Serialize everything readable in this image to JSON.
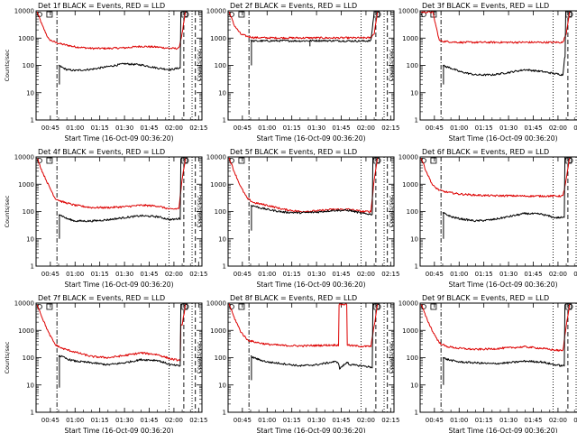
{
  "figure": {
    "background": "#ffffff"
  },
  "colors": {
    "events": "#000000",
    "lld": "#dd0000",
    "axes": "#000000"
  },
  "x_ticks": [
    "00:45",
    "01:00",
    "01:15",
    "01:30",
    "01:45",
    "02:00",
    "02:15"
  ],
  "y_ticks": [
    "1",
    "10",
    "100",
    "1000",
    "10000"
  ],
  "chart_data": [
    {
      "type": "line",
      "title": "Det 1f BLACK = Events, RED = LLD",
      "xlabel": "Start Time (16-Oct-09 00:36:20)",
      "ylabel": "Counts/sec",
      "xlim_minutes": [
        36.33,
        137
      ],
      "ylim": [
        1,
        10000
      ],
      "yscale": "log",
      "markers": {
        "dashdot": [
          49
        ],
        "dotted": [
          117,
          131
        ],
        "dashed": [
          126,
          133
        ]
      },
      "series": [
        {
          "name": "Events",
          "color": "black",
          "x": [
            50,
            52,
            55,
            60,
            70,
            80,
            90,
            100,
            110,
            118,
            123,
            125
          ],
          "y": [
            100,
            85,
            70,
            65,
            72,
            90,
            115,
            105,
            80,
            70,
            80,
            9000
          ],
          "spikes": [
            [
              50.5,
              20
            ]
          ]
        },
        {
          "name": "LLD",
          "color": "red",
          "x": [
            37,
            40,
            44,
            48,
            52,
            60,
            70,
            80,
            90,
            100,
            110,
            118,
            123,
            125,
            127
          ],
          "y": [
            9000,
            3000,
            900,
            700,
            600,
            480,
            420,
            420,
            440,
            500,
            470,
            420,
            420,
            1500,
            9000
          ]
        }
      ]
    },
    {
      "type": "line",
      "title": "Det 2f BLACK = Events, RED = LLD",
      "xlabel": "Start Time (16-Oct-09 00:36:20)",
      "ylabel": "Counts/sec",
      "xlim_minutes": [
        36.33,
        137
      ],
      "ylim": [
        1,
        10000
      ],
      "yscale": "log",
      "markers": {
        "dashdot": [
          49
        ],
        "dotted": [
          117,
          131
        ],
        "dashed": [
          126,
          133
        ]
      },
      "series": [
        {
          "name": "Events",
          "color": "black",
          "x": [
            50,
            52,
            60,
            70,
            80,
            90,
            100,
            110,
            118,
            123,
            125
          ],
          "y": [
            800,
            780,
            790,
            800,
            790,
            810,
            800,
            790,
            780,
            800,
            9000
          ],
          "spikes": [
            [
              50.5,
              100
            ],
            [
              86,
              500
            ]
          ]
        },
        {
          "name": "LLD",
          "color": "red",
          "x": [
            37,
            40,
            44,
            48,
            52,
            60,
            70,
            80,
            90,
            100,
            110,
            118,
            123,
            125,
            127
          ],
          "y": [
            9000,
            3000,
            1400,
            1150,
            1050,
            1020,
            1020,
            1020,
            1020,
            1020,
            1020,
            1020,
            1030,
            1500,
            9000
          ]
        }
      ]
    },
    {
      "type": "line",
      "title": "Det 3f BLACK = Events, RED = LLD",
      "xlabel": "Start Time (16-Oct-09 00:36:20)",
      "ylabel": "Counts/sec",
      "xlim_minutes": [
        36.33,
        137
      ],
      "ylim": [
        1,
        10000
      ],
      "yscale": "log",
      "markers": {
        "dashdot": [
          49
        ],
        "dotted": [
          117,
          131
        ],
        "dashed": [
          126,
          133
        ]
      },
      "series": [
        {
          "name": "Events",
          "color": "black",
          "x": [
            50,
            52,
            55,
            60,
            70,
            80,
            90,
            100,
            110,
            118,
            123,
            124,
            125
          ],
          "y": [
            100,
            90,
            80,
            60,
            45,
            45,
            55,
            70,
            60,
            50,
            45,
            200,
            9000
          ],
          "spikes": [
            [
              50.5,
              20
            ]
          ]
        },
        {
          "name": "LLD",
          "color": "red",
          "x": [
            37,
            40,
            44,
            48,
            52,
            60,
            70,
            80,
            90,
            100,
            110,
            118,
            123,
            125,
            127
          ],
          "y": [
            9000,
            9000,
            9000,
            800,
            750,
            700,
            700,
            700,
            700,
            700,
            700,
            700,
            700,
            1500,
            9000
          ]
        }
      ]
    },
    {
      "type": "line",
      "title": "Det 4f BLACK = Events, RED = LLD",
      "xlabel": "Start Time (16-Oct-09 00:36:20)",
      "ylabel": "Counts/sec",
      "xlim_minutes": [
        36.33,
        137
      ],
      "ylim": [
        1,
        10000
      ],
      "yscale": "log",
      "markers": {
        "dashdot": [
          49
        ],
        "dotted": [
          117,
          131
        ],
        "dashed": [
          126,
          133
        ]
      },
      "series": [
        {
          "name": "Events",
          "color": "black",
          "x": [
            50,
            52,
            55,
            60,
            70,
            80,
            90,
            100,
            110,
            118,
            123,
            125
          ],
          "y": [
            80,
            70,
            55,
            45,
            45,
            50,
            60,
            70,
            65,
            50,
            55,
            9000
          ],
          "spikes": [
            [
              50.5,
              10
            ]
          ]
        },
        {
          "name": "LLD",
          "color": "red",
          "x": [
            37,
            40,
            44,
            48,
            52,
            60,
            70,
            80,
            90,
            100,
            110,
            118,
            123,
            125,
            127
          ],
          "y": [
            9000,
            3000,
            900,
            300,
            230,
            170,
            140,
            140,
            150,
            170,
            160,
            120,
            130,
            1500,
            9000
          ]
        }
      ]
    },
    {
      "type": "line",
      "title": "Det 5f BLACK = Events, RED = LLD",
      "xlabel": "Start Time (16-Oct-09 00:36:20)",
      "ylabel": "Counts/sec",
      "xlim_minutes": [
        36.33,
        137
      ],
      "ylim": [
        1,
        10000
      ],
      "yscale": "log",
      "markers": {
        "dashdot": [
          49
        ],
        "dotted": [
          117,
          131
        ],
        "dashed": [
          126,
          133
        ]
      },
      "series": [
        {
          "name": "Events",
          "color": "black",
          "x": [
            50,
            52,
            55,
            60,
            70,
            80,
            90,
            100,
            110,
            118,
            123,
            125
          ],
          "y": [
            170,
            160,
            140,
            120,
            95,
            90,
            95,
            110,
            110,
            85,
            80,
            9000
          ],
          "spikes": [
            [
              50.5,
              20
            ]
          ]
        },
        {
          "name": "LLD",
          "color": "red",
          "x": [
            37,
            40,
            44,
            48,
            52,
            60,
            70,
            80,
            90,
            100,
            110,
            118,
            123,
            125,
            127
          ],
          "y": [
            9000,
            3000,
            800,
            300,
            210,
            170,
            120,
            100,
            105,
            120,
            120,
            100,
            100,
            1500,
            9000
          ]
        }
      ]
    },
    {
      "type": "line",
      "title": "Det 6f BLACK = Events, RED = LLD",
      "xlabel": "Start Time (16-Oct-09 00:36:20)",
      "ylabel": "Counts/sec",
      "xlim_minutes": [
        36.33,
        137
      ],
      "ylim": [
        1,
        10000
      ],
      "yscale": "log",
      "markers": {
        "dashdot": [
          49
        ],
        "dotted": [
          117,
          131
        ],
        "dashed": [
          126,
          133
        ]
      },
      "series": [
        {
          "name": "Events",
          "color": "black",
          "x": [
            50,
            52,
            55,
            60,
            70,
            80,
            90,
            100,
            110,
            118,
            123,
            125
          ],
          "y": [
            90,
            80,
            65,
            55,
            45,
            50,
            65,
            85,
            80,
            60,
            60,
            9000
          ],
          "spikes": [
            [
              50.5,
              10
            ]
          ]
        },
        {
          "name": "LLD",
          "color": "red",
          "x": [
            37,
            40,
            44,
            48,
            52,
            60,
            70,
            80,
            90,
            100,
            110,
            118,
            123,
            125,
            127
          ],
          "y": [
            9000,
            3000,
            900,
            600,
            520,
            440,
            400,
            380,
            380,
            370,
            370,
            370,
            370,
            1500,
            9000
          ]
        }
      ]
    },
    {
      "type": "line",
      "title": "Det 7f BLACK = Events, RED = LLD",
      "xlabel": "Start Time (16-Oct-09 00:36:20)",
      "ylabel": "Counts/sec",
      "xlim_minutes": [
        36.33,
        137
      ],
      "ylim": [
        1,
        10000
      ],
      "yscale": "log",
      "markers": {
        "dashdot": [
          49
        ],
        "dotted": [
          117,
          131
        ],
        "dashed": [
          126,
          133
        ]
      },
      "series": [
        {
          "name": "Events",
          "color": "black",
          "x": [
            50,
            52,
            55,
            60,
            70,
            80,
            90,
            100,
            110,
            118,
            123,
            125
          ],
          "y": [
            120,
            110,
            90,
            75,
            65,
            55,
            65,
            85,
            80,
            55,
            50,
            9000
          ],
          "spikes": [
            [
              50.5,
              8
            ]
          ]
        },
        {
          "name": "LLD",
          "color": "red",
          "x": [
            37,
            40,
            44,
            48,
            52,
            60,
            70,
            80,
            90,
            100,
            110,
            118,
            123,
            125,
            127
          ],
          "y": [
            9000,
            3000,
            800,
            300,
            220,
            160,
            110,
            100,
            120,
            150,
            130,
            90,
            80,
            1500,
            9000
          ]
        }
      ]
    },
    {
      "type": "line",
      "title": "Det 8f BLACK = Events, RED = LLD",
      "xlabel": "Start Time (16-Oct-09 00:36:20)",
      "ylabel": "Counts/sec",
      "xlim_minutes": [
        36.33,
        137
      ],
      "ylim": [
        1,
        10000
      ],
      "yscale": "log",
      "markers": {
        "dashdot": [
          49
        ],
        "dotted": [
          117,
          131
        ],
        "dashed": [
          126,
          133
        ]
      },
      "series": [
        {
          "name": "Events",
          "color": "black",
          "x": [
            50,
            52,
            55,
            60,
            70,
            80,
            90,
            100,
            103,
            104,
            109,
            110,
            118,
            123,
            125
          ],
          "y": [
            110,
            100,
            85,
            70,
            60,
            50,
            55,
            70,
            70,
            40,
            70,
            55,
            50,
            45,
            9000
          ],
          "spikes": [
            [
              50.5,
              15
            ]
          ]
        },
        {
          "name": "LLD",
          "color": "red",
          "x": [
            37,
            40,
            44,
            48,
            52,
            60,
            70,
            80,
            90,
            100,
            103,
            104,
            108,
            109,
            110,
            118,
            123,
            125,
            127
          ],
          "y": [
            9000,
            3000,
            900,
            450,
            380,
            310,
            280,
            270,
            280,
            290,
            290,
            9000,
            9000,
            300,
            280,
            260,
            260,
            1500,
            9000
          ]
        }
      ]
    },
    {
      "type": "line",
      "title": "Det 9f BLACK = Events, RED = LLD",
      "xlabel": "Start Time (16-Oct-09 00:36:20)",
      "ylabel": "Counts/sec",
      "xlim_minutes": [
        36.33,
        137
      ],
      "ylim": [
        1,
        10000
      ],
      "yscale": "log",
      "markers": {
        "dashdot": [
          49
        ],
        "dotted": [
          117,
          131
        ],
        "dashed": [
          126,
          133
        ]
      },
      "series": [
        {
          "name": "Events",
          "color": "black",
          "x": [
            50,
            52,
            55,
            60,
            70,
            80,
            90,
            100,
            110,
            118,
            123,
            125
          ],
          "y": [
            100,
            90,
            80,
            70,
            65,
            60,
            65,
            75,
            70,
            55,
            50,
            9000
          ],
          "spikes": [
            [
              50.5,
              10
            ]
          ]
        },
        {
          "name": "LLD",
          "color": "red",
          "x": [
            37,
            40,
            44,
            48,
            52,
            60,
            70,
            80,
            90,
            100,
            110,
            118,
            123,
            125,
            127
          ],
          "y": [
            9000,
            3000,
            900,
            350,
            260,
            220,
            200,
            210,
            230,
            250,
            220,
            190,
            180,
            1500,
            9000
          ]
        }
      ]
    }
  ]
}
